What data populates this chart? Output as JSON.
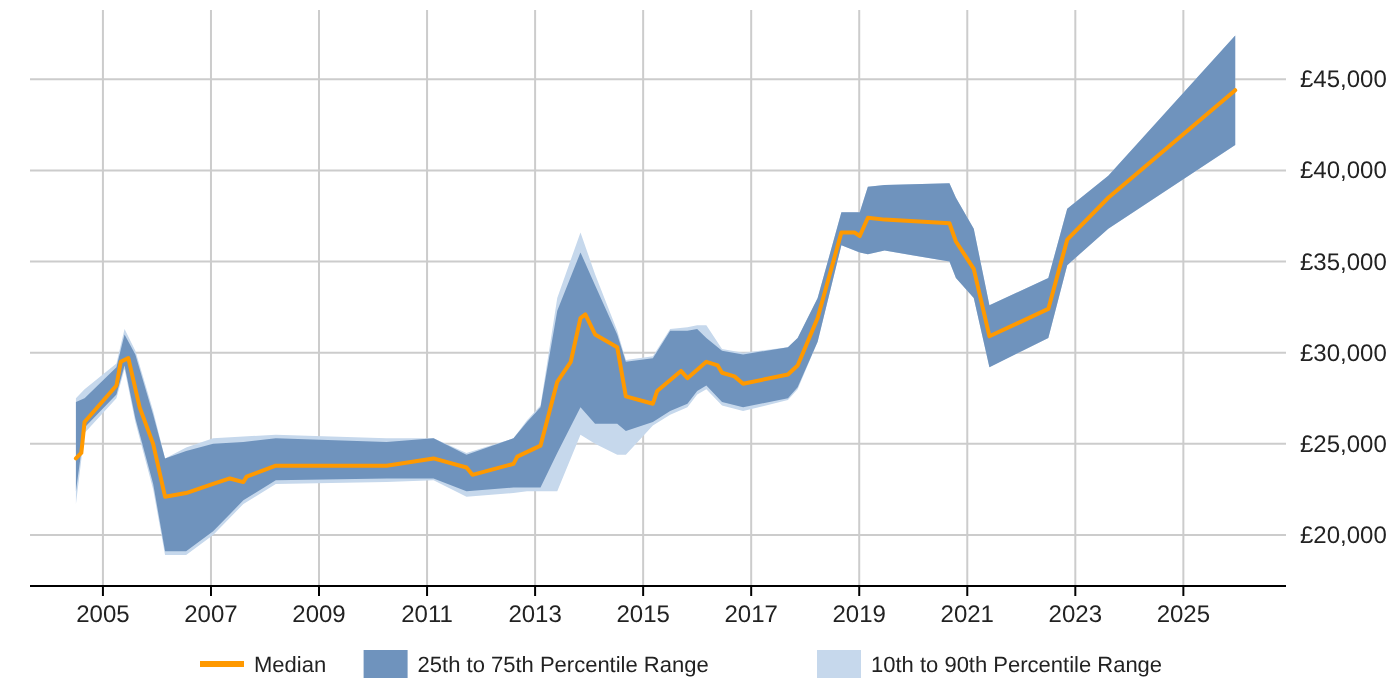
{
  "chart_data": {
    "type": "line",
    "xlim": [
      2003.65,
      2026.9
    ],
    "xticks": [
      2005,
      2007,
      2009,
      2011,
      2013,
      2015,
      2017,
      2019,
      2021,
      2023,
      2025
    ],
    "ylim": [
      17200,
      48800
    ],
    "yticks": [
      {
        "value": 20000,
        "label": "£20,000"
      },
      {
        "value": 25000,
        "label": "£25,000"
      },
      {
        "value": 30000,
        "label": "£30,000"
      },
      {
        "value": 35000,
        "label": "£35,000"
      },
      {
        "value": 40000,
        "label": "£40,000"
      },
      {
        "value": 45000,
        "label": "£45,000"
      }
    ],
    "grid": true,
    "legend": "bottom",
    "series": [
      {
        "name": "10th to 90th Percentile Range",
        "color": "#c6d8ec",
        "x": [
          2004.5,
          2004.66,
          2005.25,
          2005.4,
          2005.6,
          2005.93,
          2006.15,
          2006.54,
          2007.04,
          2007.6,
          2008.2,
          2010.25,
          2011.12,
          2011.73,
          2012.6,
          2012.85,
          2013.1,
          2013.41,
          2013.84,
          2014.11,
          2014.52,
          2014.68,
          2015.18,
          2015.5,
          2015.82,
          2016.0,
          2016.17,
          2016.46,
          2016.85,
          2017.68,
          2017.86,
          2018.23,
          2018.67,
          2019.01,
          2019.16,
          2019.47,
          2020.67,
          2020.79,
          2021.12,
          2021.41,
          2022.5,
          2022.85,
          2023.61,
          2025.96
        ],
        "values": [
          null,
          null,
          null,
          null,
          null,
          null,
          null,
          null,
          null,
          null,
          null,
          null,
          null,
          null,
          null,
          null,
          null,
          null,
          null,
          null,
          null,
          null,
          null,
          null,
          null,
          null,
          null,
          null,
          null,
          null,
          null,
          null,
          null,
          null,
          null,
          null,
          null,
          null,
          null,
          null,
          null,
          null,
          null,
          null
        ],
        "lower": [
          21700,
          25600,
          27500,
          29100,
          26200,
          22500,
          18900,
          18900,
          20000,
          21700,
          22800,
          22900,
          23000,
          22100,
          22300,
          22400,
          22400,
          22400,
          25500,
          25000,
          24400,
          24400,
          26000,
          26600,
          27000,
          27700,
          28000,
          27100,
          26800,
          27400,
          28000,
          30600,
          35900,
          35500,
          35400,
          35600,
          35000,
          34100,
          33000,
          29200,
          30800,
          34800,
          36800,
          41400
        ],
        "upper": [
          27500,
          28000,
          29400,
          31300,
          30100,
          26800,
          24200,
          24800,
          25300,
          25400,
          25500,
          25300,
          25300,
          24500,
          25300,
          26300,
          27100,
          33000,
          36600,
          34300,
          31200,
          29600,
          29800,
          31300,
          31400,
          31500,
          31500,
          30200,
          30000,
          30300,
          30800,
          33000,
          37700,
          37700,
          39100,
          39200,
          39300,
          38500,
          36800,
          32600,
          34100,
          37900,
          39700,
          47400
        ]
      },
      {
        "name": "25th to 75th Percentile Range",
        "color": "#6f93bd",
        "x": [
          2004.5,
          2004.66,
          2005.25,
          2005.4,
          2005.6,
          2005.93,
          2006.15,
          2006.54,
          2007.04,
          2007.6,
          2008.2,
          2010.25,
          2011.12,
          2011.73,
          2012.6,
          2012.85,
          2013.1,
          2013.41,
          2013.84,
          2014.11,
          2014.52,
          2014.68,
          2015.18,
          2015.5,
          2015.82,
          2016.0,
          2016.17,
          2016.46,
          2016.85,
          2017.68,
          2017.86,
          2018.23,
          2018.67,
          2019.01,
          2019.16,
          2019.47,
          2020.67,
          2020.79,
          2021.12,
          2021.41,
          2022.5,
          2022.85,
          2023.61,
          2025.96
        ],
        "values": [
          null,
          null,
          null,
          null,
          null,
          null,
          null,
          null,
          null,
          null,
          null,
          null,
          null,
          null,
          null,
          null,
          null,
          null,
          null,
          null,
          null,
          null,
          null,
          null,
          null,
          null,
          null,
          null,
          null,
          null,
          null,
          null,
          null,
          null,
          null,
          null,
          null,
          null,
          null,
          null,
          null,
          null,
          null,
          null
        ],
        "lower": [
          22400,
          25900,
          27700,
          29300,
          26400,
          22800,
          19100,
          19100,
          20200,
          21900,
          23000,
          23100,
          23100,
          22400,
          22600,
          22600,
          22600,
          24500,
          27000,
          26100,
          26100,
          25700,
          26200,
          26800,
          27200,
          27900,
          28200,
          27300,
          27000,
          27500,
          28100,
          30600,
          35900,
          35500,
          35400,
          35600,
          35000,
          34100,
          33000,
          29200,
          30800,
          34800,
          36800,
          41400
        ],
        "upper": [
          27300,
          27500,
          29200,
          31000,
          29900,
          26600,
          24200,
          24600,
          25000,
          25100,
          25300,
          25100,
          25300,
          24400,
          25300,
          26200,
          27000,
          32300,
          35500,
          33700,
          31000,
          29500,
          29700,
          31200,
          31200,
          31300,
          30800,
          30100,
          29900,
          30300,
          30800,
          33000,
          37700,
          37700,
          39100,
          39200,
          39300,
          38500,
          36800,
          32600,
          34100,
          37900,
          39700,
          47400
        ]
      },
      {
        "name": "Median",
        "color": "#ff9900",
        "x": [
          2004.5,
          2004.6,
          2004.66,
          2005.25,
          2005.33,
          2005.47,
          2005.68,
          2005.93,
          2006.15,
          2006.54,
          2007.04,
          2007.35,
          2007.6,
          2007.66,
          2008.2,
          2010.25,
          2011.12,
          2011.73,
          2011.84,
          2012.6,
          2012.67,
          2013.1,
          2013.41,
          2013.66,
          2013.84,
          2013.93,
          2014.11,
          2014.52,
          2014.68,
          2015.18,
          2015.26,
          2015.7,
          2015.82,
          2016.17,
          2016.38,
          2016.46,
          2016.69,
          2016.85,
          2017.68,
          2017.86,
          2018.23,
          2018.67,
          2018.91,
          2019.01,
          2019.16,
          2019.47,
          2020.67,
          2020.79,
          2021.12,
          2021.41,
          2022.5,
          2022.85,
          2023.61,
          2025.96
        ],
        "values": [
          24200,
          24500,
          26200,
          28200,
          29500,
          29700,
          27000,
          25000,
          22100,
          22300,
          22800,
          23100,
          22900,
          23200,
          23800,
          23800,
          24200,
          23700,
          23300,
          23900,
          24300,
          24900,
          28400,
          29500,
          31900,
          32100,
          31000,
          30300,
          27600,
          27200,
          27900,
          29000,
          28600,
          29500,
          29300,
          28900,
          28700,
          28300,
          28800,
          29300,
          31900,
          36600,
          36600,
          36400,
          37400,
          37300,
          37100,
          36100,
          34600,
          30900,
          32400,
          36200,
          38500,
          44400
        ]
      }
    ]
  }
}
